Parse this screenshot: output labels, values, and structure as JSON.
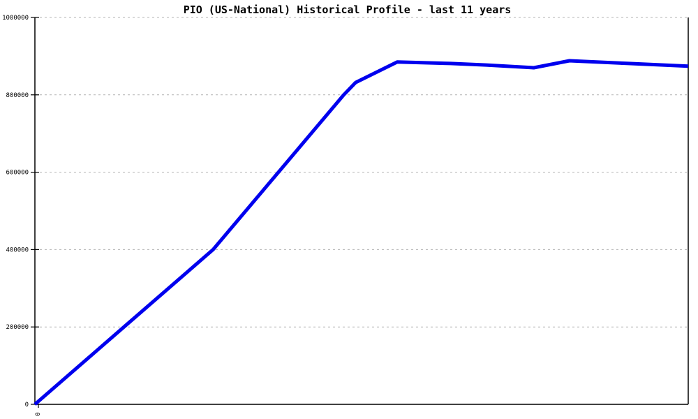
{
  "chart_data": {
    "type": "line",
    "title": "PIO (US-National) Historical Profile - last 11 years",
    "xlabel": "",
    "ylabel": "",
    "legend": "none",
    "grid": {
      "horizontal": true,
      "style": "dashed"
    },
    "x_axis": {
      "range_years": [
        0,
        11
      ],
      "tick_values": [
        0
      ],
      "tick_labels": [
        "0"
      ],
      "tick_label_rotation_deg": -90
    },
    "y_axis": {
      "range": [
        0,
        1000000
      ],
      "tick_values": [
        0,
        200000,
        400000,
        600000,
        800000,
        1000000
      ],
      "tick_labels": [
        "0",
        "200000",
        "400000",
        "600000",
        "800000",
        "1000000"
      ]
    },
    "series": [
      {
        "name": "PIO historical profile",
        "color": "#0000ee",
        "line_width": 5,
        "points": [
          {
            "x_years": 0.0,
            "value": 0
          },
          {
            "x_years": 1.5,
            "value": 200000
          },
          {
            "x_years": 3.0,
            "value": 400000
          },
          {
            "x_years": 4.1,
            "value": 600000
          },
          {
            "x_years": 5.2,
            "value": 800000
          },
          {
            "x_years": 5.4,
            "value": 832000
          },
          {
            "x_years": 6.1,
            "value": 885000
          },
          {
            "x_years": 7.0,
            "value": 881000
          },
          {
            "x_years": 7.6,
            "value": 877000
          },
          {
            "x_years": 8.4,
            "value": 870000
          },
          {
            "x_years": 9.0,
            "value": 888000
          },
          {
            "x_years": 10.0,
            "value": 881000
          },
          {
            "x_years": 11.0,
            "value": 874000
          }
        ]
      }
    ]
  },
  "colors": {
    "background": "#ffffff",
    "axis": "#000000",
    "grid": "#b3b3b3",
    "line": "#0000ee",
    "text": "#000000"
  }
}
